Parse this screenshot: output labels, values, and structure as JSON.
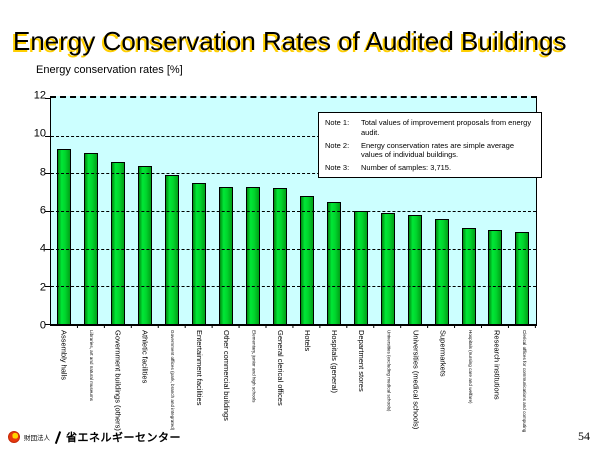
{
  "slide": {
    "title": "Energy Conservation Rates of Audited Buildings",
    "page_number": "54",
    "footer": {
      "org_prefix": "財団法人",
      "org_name": "省エネルギーセンター"
    }
  },
  "chart_data": {
    "type": "bar",
    "title": "",
    "ylabel": "Energy conservation rates [%]",
    "xlabel": "",
    "ylim": [
      0,
      12
    ],
    "yticks": [
      0,
      2,
      4,
      6,
      8,
      10,
      12
    ],
    "grid": "horizontal dash-dot",
    "plot_bg_color": "#ccffff",
    "bar_color": "#00d52c",
    "categories": [
      "Assembly halls",
      "Libraries, art and natural museums",
      "Government buildings (others)",
      "Athletic facilities",
      "Government offices (park, branch and integrated)",
      "Entertainment facilities",
      "Other commercial buildings",
      "Elementary, junior and high schools",
      "General clerical offices",
      "Hotels",
      "Hospitals (general)",
      "Department stores",
      "Universities (excluding medical schools)",
      "Universities (medical schools)",
      "Supermarkets",
      "Hospitals (nursing care and welfare)",
      "Research institutions",
      "Clerical offices for communications and computing"
    ],
    "values": [
      9.3,
      9.1,
      8.6,
      8.4,
      7.9,
      7.5,
      7.3,
      7.3,
      7.2,
      6.8,
      6.5,
      6.0,
      5.9,
      5.8,
      5.6,
      5.1,
      5.0,
      4.9
    ],
    "notes": [
      {
        "label": "Note 1:",
        "text": "Total values of improvement proposals from energy audit."
      },
      {
        "label": "Note 2:",
        "text": "Energy conservation rates are simple average values of individual buildings."
      },
      {
        "label": "Note 3:",
        "text": "Number of samples: 3,715."
      }
    ]
  }
}
